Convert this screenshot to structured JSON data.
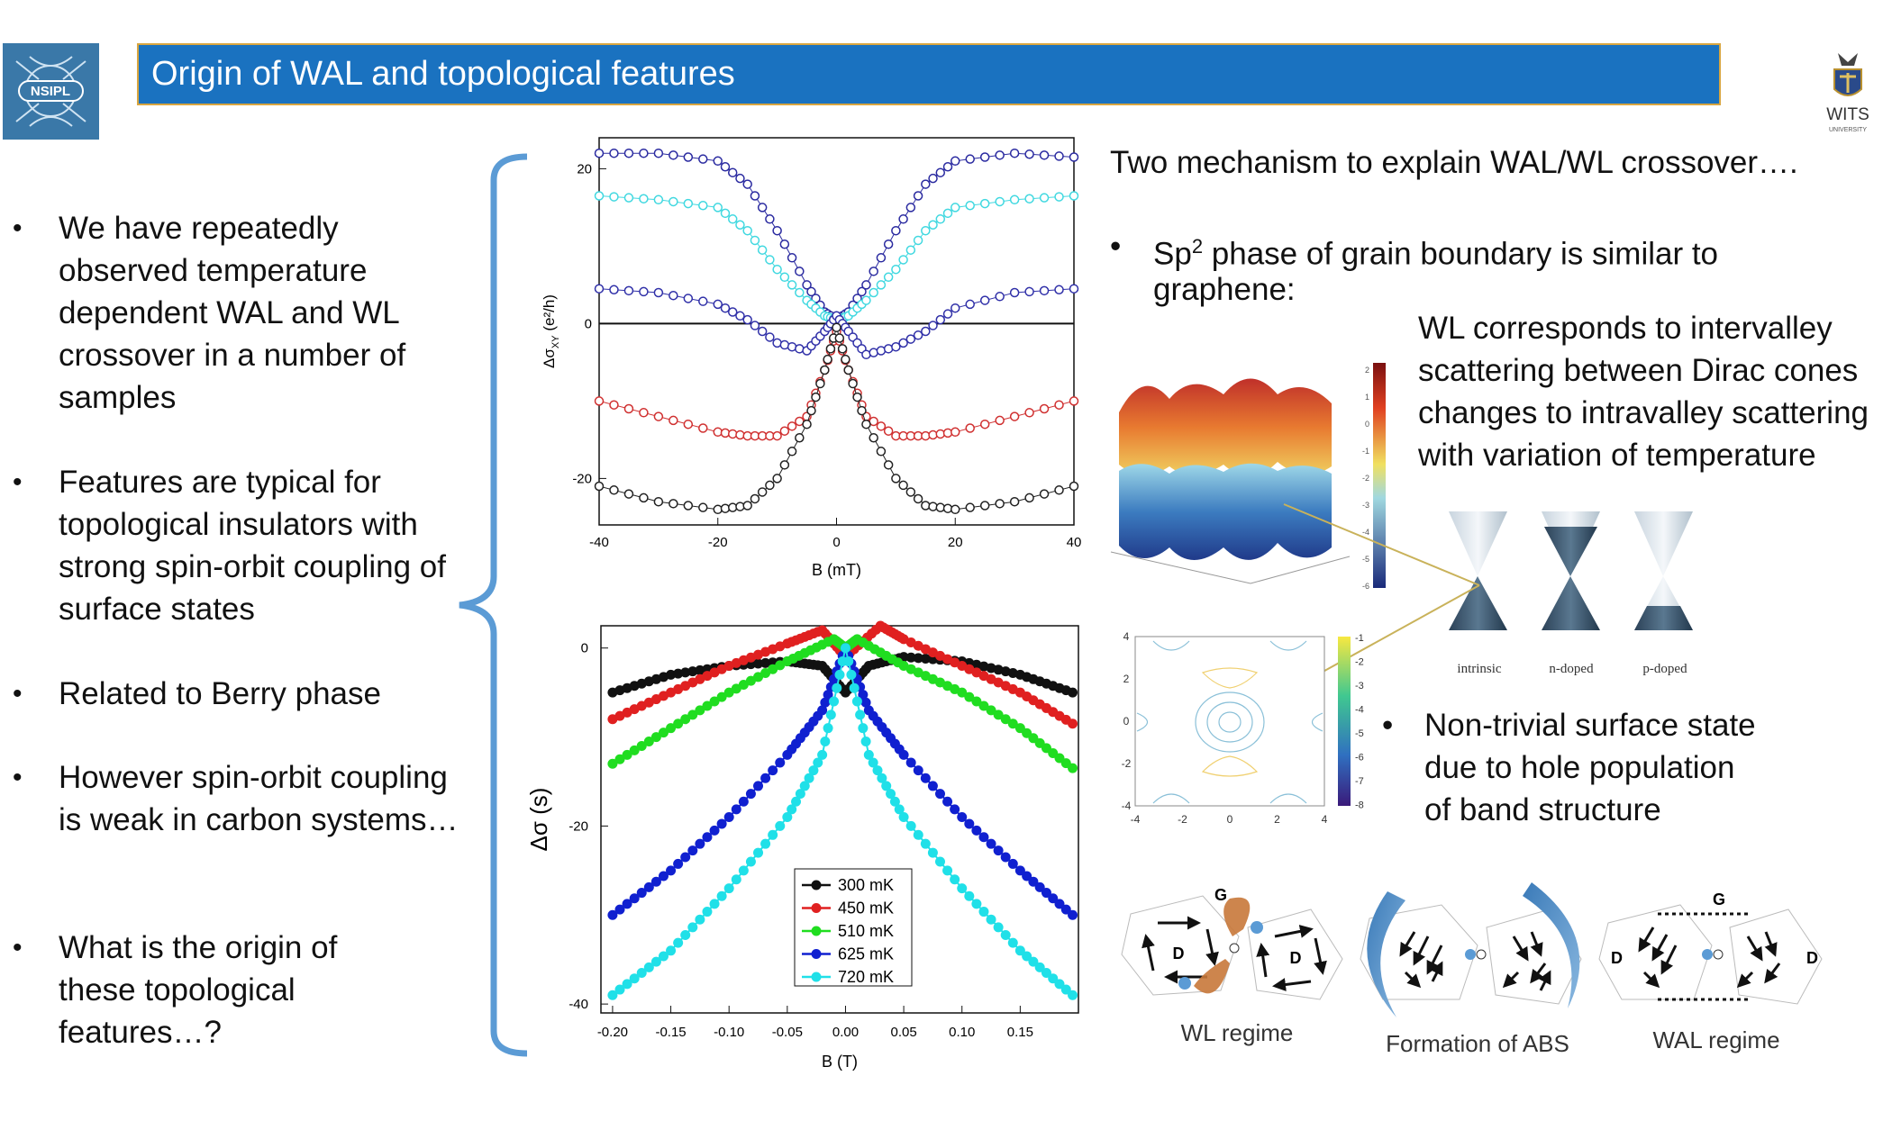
{
  "slide": {
    "title": "Origin of WAL and topological features",
    "logo_left_text": "NSIPL",
    "logo_right_text": "WITS",
    "logo_right_subtext": "UNIVERSITY"
  },
  "left_bullets": [
    {
      "text": "We have repeatedly observed temperature dependent WAL and WL crossover in a number of samples"
    },
    {
      "text": "Features are typical for topological insulators with strong spin-orbit coupling of surface states"
    },
    {
      "text": "Related to Berry phase"
    },
    {
      "text": "However spin-orbit coupling is weak in carbon systems…"
    },
    {
      "text": "What is the origin of these topological features…?"
    }
  ],
  "right": {
    "heading": "Two mechanism to explain WAL/WL crossover….",
    "bullet1_prefix": "Sp",
    "bullet1_sup": "2",
    "bullet1_suffix": " phase of grain boundary is similar to",
    "bullet1_line2": "graphene:",
    "wl_text": [
      "WL corresponds to intervalley",
      "scattering between Dirac cones",
      "changes to intravalley scattering",
      "with variation of temperature"
    ],
    "bullet2_lines": [
      "Non-trivial surface state",
      "due to hole population",
      "of band structure"
    ]
  },
  "cones": {
    "labels": [
      "intrinsic",
      "n-doped",
      "p-doped"
    ]
  },
  "colorbar3d_ticks": [
    "2",
    "1",
    "0",
    "-1",
    "-2",
    "-3",
    "-4",
    "-5",
    "-6"
  ],
  "contour": {
    "x_ticks": [
      "-4",
      "-2",
      "0",
      "2",
      "4"
    ],
    "y_ticks": [
      "4",
      "2",
      "0",
      "-2",
      "-4"
    ],
    "colorbar_ticks": [
      "-1",
      "-2",
      "-3",
      "-4",
      "-5",
      "-6",
      "-7",
      "-8"
    ]
  },
  "regimes": {
    "labels": [
      "WL regime",
      "Formation of ABS",
      "WAL regime"
    ],
    "node_D": "D",
    "node_G": "G"
  },
  "chart_data": [
    {
      "type": "scatter",
      "title": "",
      "xlabel": "B (mT)",
      "ylabel": "Δσ",
      "ylabel_sub": "XY",
      "ylabel_unit": " (e²/h)",
      "xlim": [
        -40,
        40
      ],
      "ylim": [
        -26,
        24
      ],
      "x_ticks": [
        -40,
        -20,
        0,
        20,
        40
      ],
      "y_ticks": [
        -20,
        0,
        20
      ],
      "colors": [
        "#2a2aa0",
        "#40d8e0",
        "#3030a8",
        "#d03030",
        "#222222"
      ],
      "series": [
        {
          "x": [
            -40,
            -30,
            -20,
            -15,
            -10,
            -5,
            -2,
            0,
            2,
            5,
            10,
            15,
            20,
            30,
            40
          ],
          "values": [
            22,
            22,
            21,
            18,
            12,
            5,
            1.5,
            0.5,
            1.5,
            5,
            12,
            18,
            21,
            22,
            21.5
          ]
        },
        {
          "x": [
            -40,
            -30,
            -20,
            -15,
            -10,
            -5,
            -2,
            0,
            2,
            5,
            10,
            15,
            20,
            30,
            40
          ],
          "values": [
            16.5,
            16,
            15,
            12,
            7,
            3,
            1,
            0.5,
            1,
            3,
            7,
            12,
            15,
            16,
            16.5
          ]
        },
        {
          "x": [
            -40,
            -30,
            -20,
            -15,
            -10,
            -5,
            -2,
            0,
            2,
            5,
            10,
            15,
            20,
            30,
            40
          ],
          "values": [
            4.5,
            4,
            2.5,
            0.5,
            -2.5,
            -3.5,
            -1,
            1,
            -1,
            -4,
            -3,
            -1,
            2,
            4,
            4.5
          ]
        },
        {
          "x": [
            -40,
            -30,
            -20,
            -15,
            -10,
            -5,
            -2,
            0,
            2,
            5,
            10,
            15,
            20,
            30,
            40
          ],
          "values": [
            -10,
            -12,
            -14,
            -14.5,
            -14.5,
            -12,
            -6,
            -1,
            -6,
            -12,
            -14.5,
            -14.5,
            -14,
            -12,
            -10
          ]
        },
        {
          "x": [
            -40,
            -30,
            -20,
            -15,
            -10,
            -5,
            -2,
            0,
            2,
            5,
            10,
            15,
            20,
            30,
            40
          ],
          "values": [
            -21,
            -23,
            -24,
            -23.5,
            -20,
            -13,
            -6,
            -0.5,
            -6,
            -13,
            -20,
            -23.5,
            -24,
            -23,
            -21
          ]
        }
      ]
    },
    {
      "type": "line",
      "title": "",
      "xlabel": "B (T)",
      "ylabel": "Δσ (s)",
      "xlim": [
        -0.21,
        0.2
      ],
      "ylim": [
        -41,
        2.5
      ],
      "x_ticks": [
        -0.2,
        -0.15,
        -0.1,
        -0.05,
        0.0,
        0.05,
        0.1,
        0.15
      ],
      "x_tick_labels": [
        "-0.20",
        "-0.15",
        "-0.10",
        "-0.05",
        "0.00",
        "0.05",
        "0.10",
        "0.15"
      ],
      "y_ticks": [
        0,
        -20,
        -40
      ],
      "legend_position": "bottom-center",
      "series": [
        {
          "name": "300 mK",
          "color": "#111111",
          "x": [
            -0.2,
            -0.15,
            -0.1,
            -0.05,
            -0.02,
            0,
            0.02,
            0.05,
            0.1,
            0.15,
            0.195
          ],
          "values": [
            -5,
            -3,
            -2,
            -1.5,
            -2,
            -5,
            -2,
            -1,
            -1.5,
            -3,
            -5
          ]
        },
        {
          "name": "450 mK",
          "color": "#e02020",
          "x": [
            -0.2,
            -0.15,
            -0.1,
            -0.05,
            -0.02,
            0,
            0.03,
            0.05,
            0.1,
            0.15,
            0.195
          ],
          "values": [
            -8,
            -5,
            -2,
            0.5,
            2,
            -1,
            2.5,
            1,
            -2,
            -5,
            -8.5
          ]
        },
        {
          "name": "510 mK",
          "color": "#20dd20",
          "x": [
            -0.2,
            -0.15,
            -0.1,
            -0.05,
            -0.01,
            0,
            0.01,
            0.05,
            0.1,
            0.15,
            0.195
          ],
          "values": [
            -13,
            -9,
            -5,
            -1.5,
            1,
            0,
            1,
            -2,
            -5,
            -9,
            -13.5
          ]
        },
        {
          "name": "625 mK",
          "color": "#1020d0",
          "x": [
            -0.2,
            -0.15,
            -0.1,
            -0.05,
            -0.02,
            0,
            0.02,
            0.05,
            0.1,
            0.15,
            0.195
          ],
          "values": [
            -30,
            -25,
            -19,
            -12,
            -7,
            0,
            -7,
            -12,
            -19,
            -25,
            -30
          ]
        },
        {
          "name": "720 mK",
          "color": "#20e0e8",
          "x": [
            -0.2,
            -0.15,
            -0.1,
            -0.05,
            -0.02,
            0,
            0.02,
            0.05,
            0.1,
            0.15,
            0.195
          ],
          "values": [
            -39,
            -34,
            -27,
            -19,
            -12,
            0,
            -12,
            -19,
            -27,
            -34,
            -39
          ]
        }
      ]
    }
  ]
}
